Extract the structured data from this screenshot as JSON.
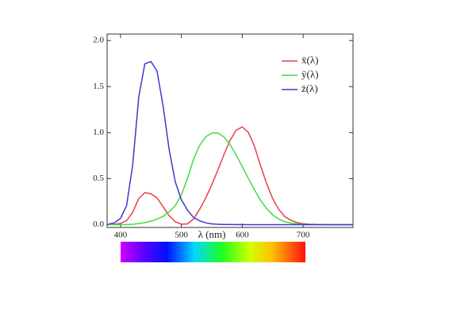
{
  "chart_data": {
    "type": "line",
    "x_label": "λ (nm)",
    "x": [
      380,
      390,
      400,
      410,
      420,
      430,
      440,
      450,
      460,
      470,
      480,
      490,
      500,
      510,
      520,
      530,
      540,
      550,
      560,
      570,
      580,
      590,
      600,
      610,
      620,
      630,
      640,
      650,
      660,
      670,
      680,
      690,
      700,
      710,
      720,
      730,
      740,
      750,
      760,
      770,
      780
    ],
    "series": [
      {
        "name": "x̄(λ)",
        "color": "#e8404a",
        "values": [
          0.001,
          0.004,
          0.014,
          0.044,
          0.134,
          0.284,
          0.348,
          0.336,
          0.291,
          0.195,
          0.096,
          0.032,
          0.005,
          0.009,
          0.063,
          0.166,
          0.29,
          0.433,
          0.595,
          0.762,
          0.916,
          1.026,
          1.062,
          1.003,
          0.854,
          0.642,
          0.448,
          0.284,
          0.165,
          0.087,
          0.047,
          0.023,
          0.011,
          0.006,
          0.003,
          0.001,
          0.001,
          0,
          0,
          0,
          0
        ]
      },
      {
        "name": "ȳ(λ)",
        "color": "#3fdc3f",
        "values": [
          0,
          0,
          0,
          0.001,
          0.004,
          0.012,
          0.023,
          0.038,
          0.06,
          0.091,
          0.139,
          0.208,
          0.323,
          0.503,
          0.71,
          0.862,
          0.954,
          0.995,
          0.995,
          0.952,
          0.87,
          0.757,
          0.631,
          0.503,
          0.381,
          0.265,
          0.175,
          0.107,
          0.061,
          0.032,
          0.017,
          0.008,
          0.004,
          0.002,
          0.001,
          0,
          0,
          0,
          0,
          0,
          0
        ]
      },
      {
        "name": "z̄(λ)",
        "color": "#3a3ad0",
        "values": [
          0.007,
          0.02,
          0.068,
          0.207,
          0.646,
          1.386,
          1.747,
          1.772,
          1.669,
          1.288,
          0.813,
          0.465,
          0.272,
          0.158,
          0.078,
          0.042,
          0.02,
          0.009,
          0.004,
          0.002,
          0.002,
          0.001,
          0.001,
          0,
          0,
          0,
          0,
          0,
          0,
          0,
          0,
          0,
          0,
          0,
          0,
          0,
          0,
          0,
          0,
          0,
          0
        ]
      }
    ],
    "xlim": [
      378,
      782
    ],
    "xticks": [
      400,
      500,
      600,
      700
    ],
    "ylim": [
      -0.03,
      2.07
    ],
    "yticks": [
      {
        "value": 0,
        "label": "0.0"
      },
      {
        "value": 0.5,
        "label": "0.5"
      },
      {
        "value": 1,
        "label": "1.0"
      },
      {
        "value": 1.5,
        "label": "1.5"
      },
      {
        "value": 2,
        "label": "2.0"
      }
    ],
    "legend": "upper right"
  }
}
